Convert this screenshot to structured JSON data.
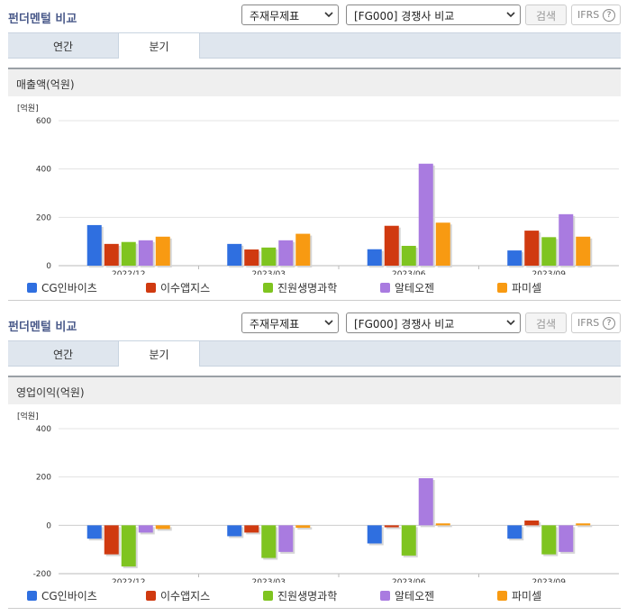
{
  "sections": [
    {
      "header": {
        "title": "펀더멘털 비교",
        "select1": "주재무제표",
        "select2": "[FG000] 경쟁사 비교",
        "search_label": "검색",
        "ifrs_label": "IFRS",
        "help": "?"
      },
      "tabs": [
        "연간",
        "분기"
      ],
      "active_tab": 1,
      "chart_title": "매출액(억원)"
    },
    {
      "header": {
        "title": "펀더멘털 비교",
        "select1": "주재무제표",
        "select2": "[FG000] 경쟁사 비교",
        "search_label": "검색",
        "ifrs_label": "IFRS",
        "help": "?"
      },
      "tabs": [
        "연간",
        "분기"
      ],
      "active_tab": 1,
      "chart_title": "영업이익(억원)"
    }
  ],
  "legend": [
    "CG인바이츠",
    "이수앱지스",
    "진원생명과학",
    "알테오젠",
    "파미셀"
  ],
  "colors": [
    "#2f6fe0",
    "#d03a10",
    "#7fc420",
    "#a97be0",
    "#f89a12"
  ],
  "chart_data": [
    {
      "type": "bar",
      "unit_label": "[억원]",
      "categories": [
        "2022/12",
        "2023/03",
        "2023/06",
        "2023/09"
      ],
      "ylim": [
        0,
        600
      ],
      "yticks": [
        "600",
        "400",
        "200",
        "0"
      ],
      "series": [
        {
          "name": "CG인바이츠",
          "values": [
            168,
            90,
            68,
            63
          ]
        },
        {
          "name": "이수앱지스",
          "values": [
            90,
            67,
            165,
            145
          ]
        },
        {
          "name": "진원생명과학",
          "values": [
            98,
            75,
            82,
            118
          ]
        },
        {
          "name": "알테오젠",
          "values": [
            105,
            105,
            422,
            213
          ]
        },
        {
          "name": "파미셀",
          "values": [
            120,
            132,
            178,
            120
          ]
        }
      ]
    },
    {
      "type": "bar",
      "unit_label": "[억원]",
      "categories": [
        "2022/12",
        "2023/03",
        "2023/06",
        "2023/09"
      ],
      "ylim": [
        -200,
        400
      ],
      "yticks": [
        "400",
        "200",
        "0",
        "-200"
      ],
      "series": [
        {
          "name": "CG인바이츠",
          "values": [
            -55,
            -45,
            -75,
            -55
          ]
        },
        {
          "name": "이수앱지스",
          "values": [
            -120,
            -30,
            -8,
            20
          ]
        },
        {
          "name": "진원생명과학",
          "values": [
            -170,
            -135,
            -125,
            -120
          ]
        },
        {
          "name": "알테오젠",
          "values": [
            -30,
            -110,
            195,
            -110
          ]
        },
        {
          "name": "파미셀",
          "values": [
            -15,
            -10,
            8,
            8
          ]
        }
      ]
    }
  ]
}
